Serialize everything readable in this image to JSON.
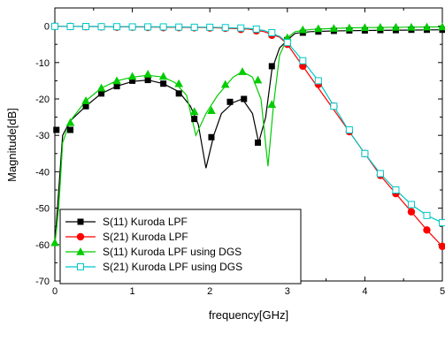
{
  "chart_data": {
    "type": "line",
    "title": "",
    "xlabel": "frequency[GHz]",
    "ylabel": "Magnitude[dB]",
    "xlim": [
      0,
      5
    ],
    "ylim": [
      -70,
      5
    ],
    "xticks": [
      0,
      1,
      2,
      3,
      4,
      5
    ],
    "yticks": [
      0,
      -10,
      -20,
      -30,
      -40,
      -50,
      -60,
      -70
    ],
    "grid": false,
    "legend_position": "lower-left",
    "series": [
      {
        "name": "S(11) Kuroda LPF",
        "color": "#000000",
        "marker": "square-filled",
        "line": [
          [
            0,
            -60
          ],
          [
            0.05,
            -45
          ],
          [
            0.1,
            -30
          ],
          [
            0.2,
            -26
          ],
          [
            0.4,
            -22
          ],
          [
            0.6,
            -18.5
          ],
          [
            0.8,
            -16.5
          ],
          [
            1.0,
            -15.2
          ],
          [
            1.2,
            -14.8
          ],
          [
            1.4,
            -15.8
          ],
          [
            1.6,
            -18
          ],
          [
            1.75,
            -22
          ],
          [
            1.85,
            -27
          ],
          [
            1.95,
            -39
          ],
          [
            2.05,
            -30
          ],
          [
            2.15,
            -24
          ],
          [
            2.3,
            -21
          ],
          [
            2.42,
            -20
          ],
          [
            2.55,
            -24
          ],
          [
            2.63,
            -32
          ],
          [
            2.72,
            -25
          ],
          [
            2.8,
            -12
          ],
          [
            2.9,
            -6
          ],
          [
            3.0,
            -3.8
          ],
          [
            3.1,
            -2
          ],
          [
            3.3,
            -1.5
          ],
          [
            3.6,
            -1.3
          ],
          [
            4.0,
            -1.2
          ],
          [
            4.5,
            -1.1
          ],
          [
            5.0,
            -1.0
          ]
        ],
        "markers": [
          [
            0.02,
            -28.5
          ],
          [
            0.2,
            -28.5
          ],
          [
            0.4,
            -22
          ],
          [
            0.6,
            -18.5
          ],
          [
            0.8,
            -16.5
          ],
          [
            1.0,
            -15
          ],
          [
            1.2,
            -14.8
          ],
          [
            1.4,
            -15.8
          ],
          [
            1.6,
            -18.5
          ],
          [
            1.8,
            -25.5
          ],
          [
            2.02,
            -30.5
          ],
          [
            2.26,
            -20.8
          ],
          [
            2.44,
            -20
          ],
          [
            2.62,
            -32
          ],
          [
            2.8,
            -11
          ],
          [
            3.0,
            -3.8
          ],
          [
            3.2,
            -1.8
          ],
          [
            3.4,
            -1.5
          ],
          [
            3.6,
            -1.3
          ],
          [
            3.8,
            -1.2
          ],
          [
            4.0,
            -1.2
          ],
          [
            4.2,
            -1.1
          ],
          [
            4.4,
            -1.1
          ],
          [
            4.6,
            -1.0
          ],
          [
            4.8,
            -1.0
          ],
          [
            5.0,
            -1.0
          ]
        ]
      },
      {
        "name": "S(21) Kuroda LPF",
        "color": "#ff0000",
        "marker": "circle-filled",
        "line": [
          [
            0,
            -0.05
          ],
          [
            0.5,
            -0.1
          ],
          [
            1.0,
            -0.2
          ],
          [
            1.5,
            -0.3
          ],
          [
            2.0,
            -0.4
          ],
          [
            2.5,
            -0.8
          ],
          [
            2.7,
            -1.5
          ],
          [
            2.9,
            -3
          ],
          [
            3.0,
            -5
          ],
          [
            3.1,
            -8
          ],
          [
            3.2,
            -11
          ],
          [
            3.4,
            -17
          ],
          [
            3.6,
            -23
          ],
          [
            3.8,
            -29
          ],
          [
            4.0,
            -35
          ],
          [
            4.2,
            -41
          ],
          [
            4.4,
            -46
          ],
          [
            4.6,
            -51
          ],
          [
            4.8,
            -56
          ],
          [
            5.0,
            -60.5
          ]
        ],
        "markers": [
          [
            0,
            -0.05
          ],
          [
            0.2,
            -0.1
          ],
          [
            0.4,
            -0.15
          ],
          [
            0.6,
            -0.2
          ],
          [
            0.8,
            -0.3
          ],
          [
            1.0,
            -0.3
          ],
          [
            1.2,
            -0.35
          ],
          [
            1.4,
            -0.4
          ],
          [
            1.6,
            -0.4
          ],
          [
            1.8,
            -0.45
          ],
          [
            2.0,
            -0.5
          ],
          [
            2.2,
            -0.6
          ],
          [
            2.4,
            -0.9
          ],
          [
            2.6,
            -1.3
          ],
          [
            2.8,
            -2.5
          ],
          [
            3.0,
            -5
          ],
          [
            3.2,
            -11
          ],
          [
            3.4,
            -16
          ],
          [
            3.6,
            -22
          ],
          [
            3.8,
            -29
          ],
          [
            4.0,
            -35
          ],
          [
            4.2,
            -41
          ],
          [
            4.4,
            -46
          ],
          [
            4.6,
            -51
          ],
          [
            4.8,
            -56
          ],
          [
            5.0,
            -60.5
          ]
        ]
      },
      {
        "name": "S(11) Kuroda LPF using DGS",
        "color": "#00cc00",
        "marker": "triangle-filled",
        "line": [
          [
            0,
            -60
          ],
          [
            0.05,
            -50
          ],
          [
            0.1,
            -32
          ],
          [
            0.2,
            -26
          ],
          [
            0.4,
            -20.5
          ],
          [
            0.6,
            -17
          ],
          [
            0.8,
            -15
          ],
          [
            1.0,
            -14
          ],
          [
            1.2,
            -13.5
          ],
          [
            1.4,
            -14
          ],
          [
            1.55,
            -15.5
          ],
          [
            1.7,
            -19
          ],
          [
            1.82,
            -30
          ],
          [
            1.95,
            -24
          ],
          [
            2.1,
            -19
          ],
          [
            2.3,
            -14
          ],
          [
            2.42,
            -12.5
          ],
          [
            2.55,
            -14
          ],
          [
            2.66,
            -20
          ],
          [
            2.75,
            -38.5
          ],
          [
            2.82,
            -22
          ],
          [
            2.9,
            -8
          ],
          [
            3.0,
            -3.2
          ],
          [
            3.1,
            -1.5
          ],
          [
            3.3,
            -0.9
          ],
          [
            3.6,
            -0.6
          ],
          [
            4.0,
            -0.4
          ],
          [
            4.5,
            -0.3
          ],
          [
            5.0,
            -0.2
          ]
        ],
        "markers": [
          [
            0,
            -59.5
          ],
          [
            0.2,
            -26.5
          ],
          [
            0.4,
            -20.5
          ],
          [
            0.6,
            -17
          ],
          [
            0.8,
            -15
          ],
          [
            1.0,
            -13.8
          ],
          [
            1.2,
            -13.2
          ],
          [
            1.4,
            -13.8
          ],
          [
            1.6,
            -15.8
          ],
          [
            1.8,
            -23.5
          ],
          [
            2.02,
            -23.2
          ],
          [
            2.2,
            -16
          ],
          [
            2.42,
            -12.5
          ],
          [
            2.62,
            -14.8
          ],
          [
            2.8,
            -21.5
          ],
          [
            3.0,
            -3.2
          ],
          [
            3.2,
            -1.0
          ],
          [
            3.4,
            -0.7
          ],
          [
            3.6,
            -0.6
          ],
          [
            3.8,
            -0.5
          ],
          [
            4.0,
            -0.4
          ],
          [
            4.2,
            -0.35
          ],
          [
            4.4,
            -0.3
          ],
          [
            4.6,
            -0.3
          ],
          [
            4.8,
            -0.25
          ],
          [
            5.0,
            -0.2
          ]
        ]
      },
      {
        "name": "S(21) Kuroda LPF using DGS",
        "color": "#00c8c8",
        "marker": "square-open",
        "line": [
          [
            0,
            -0.05
          ],
          [
            0.5,
            -0.1
          ],
          [
            1.0,
            -0.15
          ],
          [
            1.5,
            -0.2
          ],
          [
            2.0,
            -0.3
          ],
          [
            2.5,
            -0.6
          ],
          [
            2.7,
            -1.2
          ],
          [
            2.9,
            -2.8
          ],
          [
            3.0,
            -4.5
          ],
          [
            3.1,
            -7
          ],
          [
            3.2,
            -9.5
          ],
          [
            3.4,
            -15
          ],
          [
            3.6,
            -22
          ],
          [
            3.8,
            -29
          ],
          [
            4.0,
            -35
          ],
          [
            4.2,
            -40.5
          ],
          [
            4.4,
            -45
          ],
          [
            4.6,
            -49
          ],
          [
            4.8,
            -52
          ],
          [
            5.0,
            -54
          ]
        ],
        "markers": [
          [
            0,
            -0.05
          ],
          [
            0.2,
            -0.1
          ],
          [
            0.4,
            -0.1
          ],
          [
            0.6,
            -0.15
          ],
          [
            0.8,
            -0.15
          ],
          [
            1.0,
            -0.2
          ],
          [
            1.2,
            -0.2
          ],
          [
            1.4,
            -0.2
          ],
          [
            1.6,
            -0.25
          ],
          [
            1.8,
            -0.3
          ],
          [
            2.0,
            -0.3
          ],
          [
            2.2,
            -0.4
          ],
          [
            2.4,
            -0.5
          ],
          [
            2.6,
            -0.8
          ],
          [
            2.8,
            -1.8
          ],
          [
            3.0,
            -4.5
          ],
          [
            3.2,
            -9.5
          ],
          [
            3.4,
            -15
          ],
          [
            3.6,
            -22
          ],
          [
            3.8,
            -28.5
          ],
          [
            4.0,
            -35
          ],
          [
            4.2,
            -40.5
          ],
          [
            4.4,
            -45
          ],
          [
            4.6,
            -49
          ],
          [
            4.8,
            -52
          ],
          [
            5.0,
            -54
          ]
        ]
      }
    ]
  }
}
